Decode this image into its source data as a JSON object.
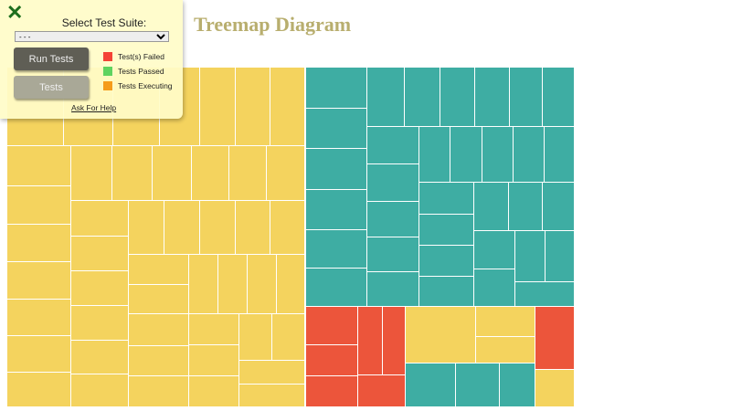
{
  "page": {
    "title": "Treemap Diagram"
  },
  "panel": {
    "close_icon": "close-x-icon",
    "suite_label": "Select Test Suite:",
    "suite_selected": "- - -",
    "run_label": "Run Tests",
    "tests_label": "Tests",
    "help_label": "Ask For Help",
    "legend": [
      {
        "label": "Test(s) Failed",
        "color": "#f44336"
      },
      {
        "label": "Tests Passed",
        "color": "#5fd35f"
      },
      {
        "label": "Tests Executing",
        "color": "#f59c1a"
      }
    ]
  },
  "colors": {
    "pending": "#f4d35e",
    "passed": "#3eada3",
    "failed": "#ec553b",
    "panel_bg": "#fffcc8"
  }
}
